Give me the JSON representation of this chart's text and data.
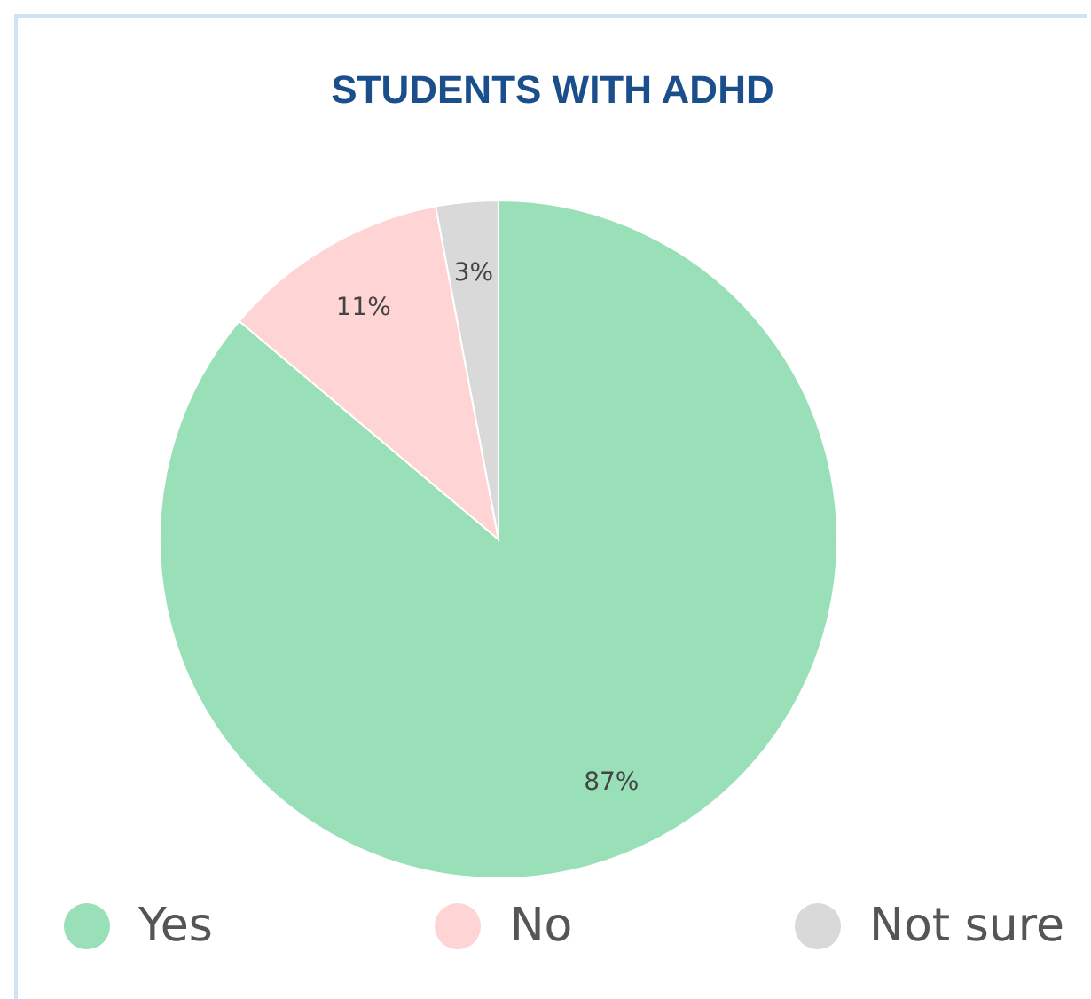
{
  "chart_data": {
    "type": "pie",
    "title": "STUDENTS WITH ADHD",
    "categories": [
      "Yes",
      "No",
      "Not sure"
    ],
    "values": [
      87,
      11,
      3
    ],
    "value_labels": [
      "87%",
      "11%",
      "3%"
    ],
    "colors": [
      "#99dfb8",
      "#ffd4d4",
      "#d9d9d9"
    ],
    "legend": "bottom"
  }
}
